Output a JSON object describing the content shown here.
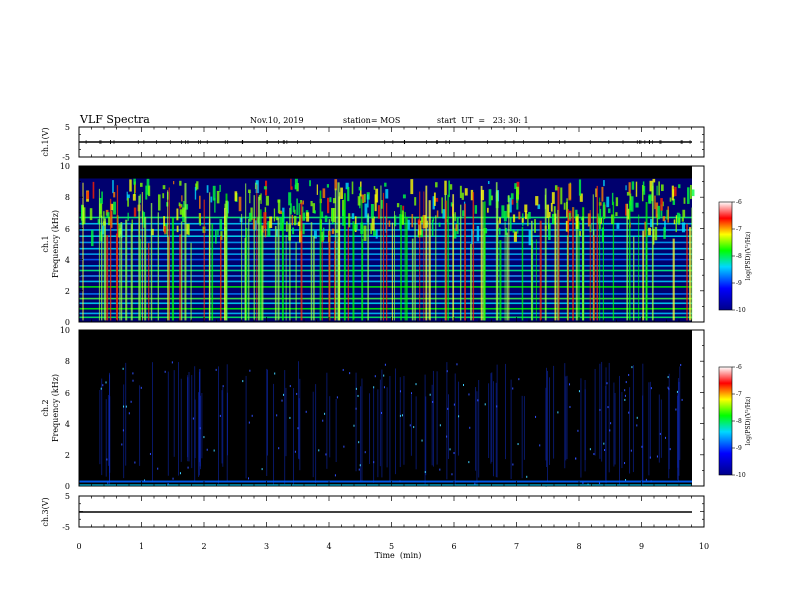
{
  "header": {
    "title": "VLF Spectra",
    "date": "Nov.10, 2019",
    "station": "station= MOS",
    "start": "start  UT  =   23: 30: 1"
  },
  "chart_data": [
    {
      "type": "line",
      "name": "ch1-voltage",
      "ylabel": "ch.1(V)",
      "yticks": [
        "5",
        "-5"
      ],
      "ylim": [
        -5,
        5
      ],
      "xlim": [
        0,
        10
      ],
      "x": [
        0,
        9.8
      ],
      "y": [
        0.0,
        0.0
      ]
    },
    {
      "type": "heatmap",
      "name": "ch1-spectrogram",
      "ylabel": "ch.1\nFrequency  (kHz)",
      "ylim": [
        0,
        10
      ],
      "yticks": [
        "0",
        "2",
        "4",
        "6",
        "8",
        "10"
      ],
      "xlim": [
        0,
        10
      ],
      "colorbar": {
        "label": "log(PSD)(V²/Hz)",
        "ticks": [
          "-6",
          "-7",
          "-8",
          "-9",
          "-10"
        ],
        "range": [
          -10,
          -6
        ]
      }
    },
    {
      "type": "heatmap",
      "name": "ch2-spectrogram",
      "ylabel": "ch.2\nFrequency  (kHz)",
      "ylim": [
        0,
        10
      ],
      "yticks": [
        "0",
        "2",
        "4",
        "6",
        "8",
        "10"
      ],
      "xlim": [
        0,
        10
      ],
      "colorbar": {
        "label": "log(PSD)(V²/Hz)",
        "ticks": [
          "-6",
          "-7",
          "-8",
          "-9",
          "-10"
        ],
        "range": [
          -10,
          -6
        ]
      }
    },
    {
      "type": "line",
      "name": "ch3-voltage",
      "ylabel": "ch.3(V)",
      "yticks": [
        "5",
        "-5"
      ],
      "ylim": [
        -5,
        5
      ],
      "xlim": [
        0,
        10
      ],
      "x": [
        0,
        9.8
      ],
      "y": [
        0.0,
        0.0
      ]
    }
  ],
  "xaxis": {
    "label": "Time  (min)",
    "ticks": [
      "0",
      "1",
      "2",
      "3",
      "4",
      "5",
      "6",
      "7",
      "8",
      "9",
      "10"
    ]
  },
  "colors": {
    "background": "#000000",
    "axis": "#000000",
    "colormap": [
      "#00008a",
      "#0000ff",
      "#00ffff",
      "#00ff00",
      "#ffff00",
      "#ff0000",
      "#ffffff"
    ]
  }
}
